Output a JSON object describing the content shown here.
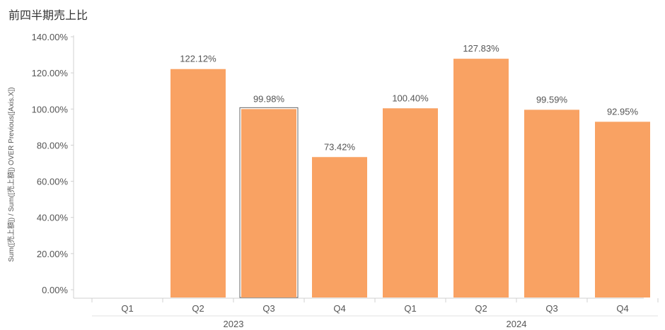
{
  "chart_data": {
    "type": "bar",
    "title": "前四半期売上比",
    "ylabel": "Sum([売上額]) / Sum([売上額]) OVER Previous([Axis.X])",
    "xlabel": "",
    "categories": [
      "Q1",
      "Q2",
      "Q3",
      "Q4",
      "Q1",
      "Q2",
      "Q3",
      "Q4"
    ],
    "groups": [
      {
        "label": "2023",
        "start": 0,
        "count": 4
      },
      {
        "label": "2024",
        "start": 4,
        "count": 4
      }
    ],
    "values": [
      null,
      122.12,
      99.98,
      73.42,
      100.4,
      127.83,
      99.59,
      92.95
    ],
    "data_labels": [
      "",
      "122.12%",
      "99.98%",
      "73.42%",
      "100.40%",
      "127.83%",
      "99.59%",
      "92.95%"
    ],
    "highlighted_index": 2,
    "y_ticks": [
      0,
      20,
      40,
      60,
      80,
      100,
      120,
      140
    ],
    "y_tick_labels": [
      "0.00%",
      "20.00%",
      "40.00%",
      "60.00%",
      "80.00%",
      "100.00%",
      "120.00%",
      "140.00%"
    ],
    "ylim": [
      0,
      140
    ],
    "bar_color": "#F9A263",
    "grid": false,
    "legend": "none"
  }
}
